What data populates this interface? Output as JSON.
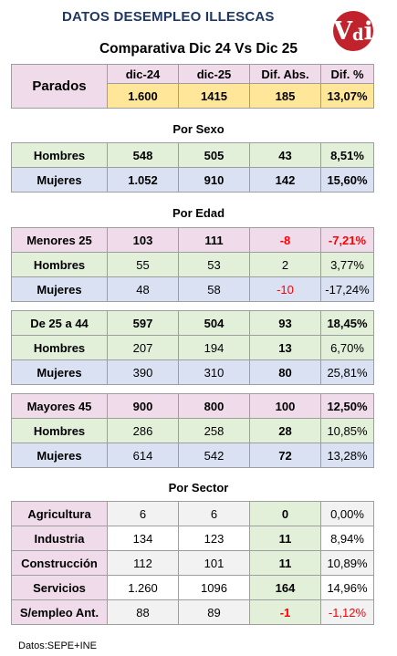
{
  "title": "DATOS DESEMPLEO ILLESCAS",
  "logo": {
    "letter1": "V",
    "letter2": "d",
    "letter3": "i",
    "color": "#c0232c"
  },
  "subtitle": "Comparativa Dic 24 Vs Dic 25",
  "summary": {
    "label": "Parados",
    "headers": [
      "dic-24",
      "dic-25",
      "Dif. Abs.",
      "Dif. %"
    ],
    "values": [
      "1.600",
      "1415",
      "185",
      "13,07%"
    ]
  },
  "sexo": {
    "heading": "Por Sexo",
    "rows": [
      {
        "label": "Hombres",
        "v1": "548",
        "v2": "505",
        "abs": "43",
        "pct": "8,51%"
      },
      {
        "label": "Mujeres",
        "v1": "1.052",
        "v2": "910",
        "abs": "142",
        "pct": "15,60%"
      }
    ]
  },
  "edad": {
    "heading": "Por Edad",
    "menores": [
      {
        "label": "Menores 25",
        "v1": "103",
        "v2": "111",
        "abs": "-8",
        "pct": "-7,21%"
      },
      {
        "label": "Hombres",
        "v1": "55",
        "v2": "53",
        "abs": "2",
        "pct": "3,77%"
      },
      {
        "label": "Mujeres",
        "v1": "48",
        "v2": "58",
        "abs": "-10",
        "pct": "-17,24%"
      }
    ],
    "medios": [
      {
        "label": "De 25 a 44",
        "v1": "597",
        "v2": "504",
        "abs": "93",
        "pct": "18,45%"
      },
      {
        "label": "Hombres",
        "v1": "207",
        "v2": "194",
        "abs": "13",
        "pct": "6,70%"
      },
      {
        "label": "Mujeres",
        "v1": "390",
        "v2": "310",
        "abs": "80",
        "pct": "25,81%"
      }
    ],
    "mayores": [
      {
        "label": "Mayores 45",
        "v1": "900",
        "v2": "800",
        "abs": "100",
        "pct": "12,50%"
      },
      {
        "label": "Hombres",
        "v1": "286",
        "v2": "258",
        "abs": "28",
        "pct": "10,85%"
      },
      {
        "label": "Mujeres",
        "v1": "614",
        "v2": "542",
        "abs": "72",
        "pct": "13,28%"
      }
    ]
  },
  "sector": {
    "heading": "Por Sector",
    "rows": [
      {
        "label": "Agricultura",
        "v1": "6",
        "v2": "6",
        "abs": "0",
        "pct": "0,00%"
      },
      {
        "label": "Industria",
        "v1": "134",
        "v2": "123",
        "abs": "11",
        "pct": "8,94%"
      },
      {
        "label": "Construcción",
        "v1": "112",
        "v2": "101",
        "abs": "11",
        "pct": "10,89%"
      },
      {
        "label": "Servicios",
        "v1": "1.260",
        "v2": "1096",
        "abs": "164",
        "pct": "14,96%"
      },
      {
        "label": "S/empleo Ant.",
        "v1": "88",
        "v2": "89",
        "abs": "-1",
        "pct": "-1,12%"
      }
    ]
  },
  "footer": "Datos:SEPE+INE"
}
